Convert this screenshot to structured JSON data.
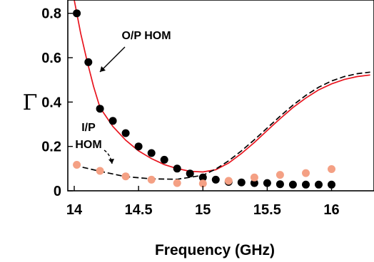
{
  "chart_data": {
    "type": "scatter",
    "title": "",
    "xlabel": "Frequency (GHz)",
    "ylabel": "Γ",
    "xlim": [
      13.95,
      16.33
    ],
    "ylim": [
      0,
      0.86
    ],
    "x_ticks": [
      14,
      14.5,
      15,
      15.5,
      16
    ],
    "x_tick_labels": [
      "14",
      "14.5",
      "15",
      "15.5",
      "16"
    ],
    "y_ticks": [
      0,
      0.2,
      0.4,
      0.6,
      0.8
    ],
    "y_tick_labels": [
      "0",
      "0.2",
      "0.4",
      "0.6",
      "0.8"
    ],
    "grid": false,
    "annotations": [
      {
        "label": "O/P HOM",
        "target": "red-solid-line"
      },
      {
        "label": "I/P",
        "target": "black-dashed-line"
      },
      {
        "label": "HOM",
        "target": "black-dashed-line"
      }
    ],
    "series": [
      {
        "kind": "line",
        "style": "solid",
        "color": "#e8141e",
        "x": [
          14.0,
          14.05,
          14.1,
          14.15,
          14.2,
          14.3,
          14.4,
          14.5,
          14.6,
          14.7,
          14.8,
          14.9,
          15.0,
          15.1,
          15.2,
          15.3,
          15.4,
          15.5,
          15.6,
          15.7,
          15.8,
          15.9,
          16.0,
          16.1,
          16.2,
          16.3
        ],
        "y": [
          0.86,
          0.71,
          0.585,
          0.47,
          0.375,
          0.29,
          0.228,
          0.18,
          0.145,
          0.118,
          0.1,
          0.088,
          0.085,
          0.095,
          0.125,
          0.168,
          0.218,
          0.272,
          0.325,
          0.375,
          0.418,
          0.455,
          0.482,
          0.502,
          0.515,
          0.522
        ]
      },
      {
        "kind": "line",
        "style": "dashed",
        "color": "#000000",
        "x": [
          14.0,
          14.2,
          14.4,
          14.6,
          14.8,
          15.0,
          15.1,
          15.2,
          15.3,
          15.4,
          15.5,
          15.6,
          15.7,
          15.8,
          15.9,
          16.0,
          16.1,
          16.2,
          16.3
        ],
        "y": [
          0.115,
          0.088,
          0.064,
          0.054,
          0.052,
          0.07,
          0.098,
          0.135,
          0.18,
          0.23,
          0.283,
          0.336,
          0.386,
          0.43,
          0.467,
          0.495,
          0.515,
          0.528,
          0.535
        ]
      },
      {
        "kind": "points",
        "color": "#000000",
        "x": [
          14.02,
          14.11,
          14.2,
          14.3,
          14.4,
          14.5,
          14.6,
          14.7,
          14.8,
          14.9,
          15.0,
          15.1,
          15.2,
          15.3,
          15.4,
          15.5,
          15.6,
          15.7,
          15.8,
          15.9,
          16.0
        ],
        "y": [
          0.8,
          0.58,
          0.37,
          0.315,
          0.26,
          0.2,
          0.17,
          0.14,
          0.1,
          0.078,
          0.06,
          0.05,
          0.04,
          0.038,
          0.035,
          0.035,
          0.03,
          0.028,
          0.028,
          0.028,
          0.028
        ]
      },
      {
        "kind": "points",
        "color": "#f4a084",
        "x": [
          14.02,
          14.2,
          14.4,
          14.6,
          14.8,
          15.0,
          15.2,
          15.4,
          15.6,
          15.8,
          16.0
        ],
        "y": [
          0.117,
          0.09,
          0.065,
          0.05,
          0.035,
          0.033,
          0.045,
          0.06,
          0.072,
          0.08,
          0.098
        ]
      }
    ]
  }
}
